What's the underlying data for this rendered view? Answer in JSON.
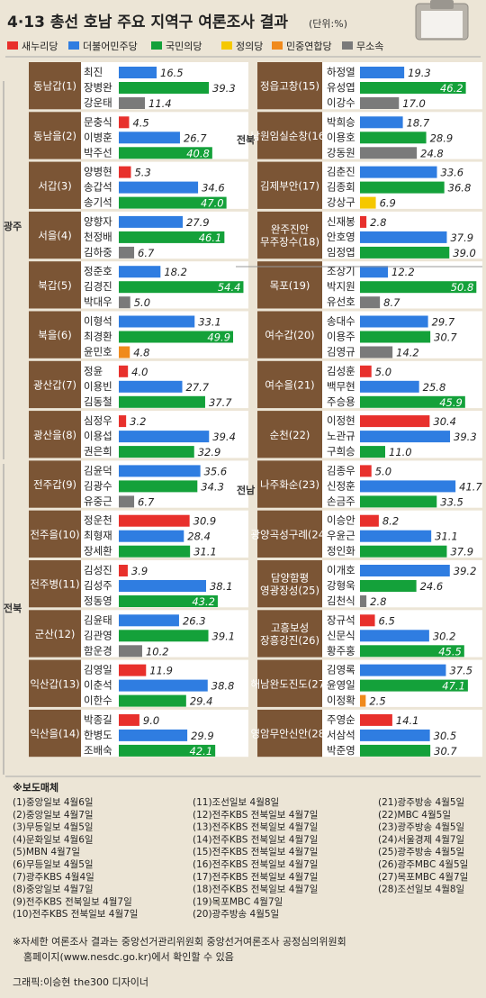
{
  "title": "4·13 총선 호남 주요 지역구 여론조사 결과",
  "unit": "(단위:%)",
  "legend": [
    {
      "name": "새누리당",
      "color": "#e8302c"
    },
    {
      "name": "더불어민주당",
      "color": "#2f7de1"
    },
    {
      "name": "국민의당",
      "color": "#14a13a"
    },
    {
      "name": "정의당",
      "color": "#f5c800"
    },
    {
      "name": "민중연합당",
      "color": "#f08a1c"
    },
    {
      "name": "무소속",
      "color": "#7a7a7a"
    }
  ],
  "regions": {
    "gwangju": "광주",
    "jeonbuk_left": "전북",
    "jeonbuk_right": "전북",
    "jeonnam": "전남"
  },
  "chart_data": {
    "type": "bar",
    "value_unit": "%",
    "left_column": [
      {
        "district": "동남갑(1)",
        "candidates": [
          {
            "name": "최진",
            "party": "더불어민주당",
            "value": 16.5
          },
          {
            "name": "장병완",
            "party": "국민의당",
            "value": 39.3
          },
          {
            "name": "강운태",
            "party": "무소속",
            "value": 11.4
          }
        ]
      },
      {
        "district": "동남을(2)",
        "candidates": [
          {
            "name": "문충식",
            "party": "새누리당",
            "value": 4.5
          },
          {
            "name": "이병훈",
            "party": "더불어민주당",
            "value": 26.7
          },
          {
            "name": "박주선",
            "party": "국민의당",
            "value": 40.8
          }
        ]
      },
      {
        "district": "서갑(3)",
        "candidates": [
          {
            "name": "양병현",
            "party": "새누리당",
            "value": 5.3
          },
          {
            "name": "송갑석",
            "party": "더불어민주당",
            "value": 34.6
          },
          {
            "name": "송기석",
            "party": "국민의당",
            "value": 47.0
          }
        ]
      },
      {
        "district": "서을(4)",
        "candidates": [
          {
            "name": "양향자",
            "party": "더불어민주당",
            "value": 27.9
          },
          {
            "name": "천정배",
            "party": "국민의당",
            "value": 46.1
          },
          {
            "name": "김하중",
            "party": "무소속",
            "value": 6.7
          }
        ]
      },
      {
        "district": "북갑(5)",
        "candidates": [
          {
            "name": "정준호",
            "party": "더불어민주당",
            "value": 18.2
          },
          {
            "name": "김경진",
            "party": "국민의당",
            "value": 54.4
          },
          {
            "name": "박대우",
            "party": "무소속",
            "value": 5.0
          }
        ]
      },
      {
        "district": "북을(6)",
        "candidates": [
          {
            "name": "이형석",
            "party": "더불어민주당",
            "value": 33.1
          },
          {
            "name": "최경환",
            "party": "국민의당",
            "value": 49.9
          },
          {
            "name": "윤민호",
            "party": "민중연합당",
            "value": 4.8
          }
        ]
      },
      {
        "district": "광산갑(7)",
        "candidates": [
          {
            "name": "정윤",
            "party": "새누리당",
            "value": 4.0
          },
          {
            "name": "이용빈",
            "party": "더불어민주당",
            "value": 27.7
          },
          {
            "name": "김동철",
            "party": "국민의당",
            "value": 37.7
          }
        ]
      },
      {
        "district": "광산을(8)",
        "candidates": [
          {
            "name": "심정우",
            "party": "새누리당",
            "value": 3.2
          },
          {
            "name": "이용섭",
            "party": "더불어민주당",
            "value": 39.4
          },
          {
            "name": "권은희",
            "party": "국민의당",
            "value": 32.9
          }
        ]
      },
      {
        "district": "전주갑(9)",
        "candidates": [
          {
            "name": "김윤덕",
            "party": "더불어민주당",
            "value": 35.6
          },
          {
            "name": "김광수",
            "party": "국민의당",
            "value": 34.3
          },
          {
            "name": "유중근",
            "party": "무소속",
            "value": 6.7
          }
        ]
      },
      {
        "district": "전주을(10)",
        "candidates": [
          {
            "name": "정운천",
            "party": "새누리당",
            "value": 30.9
          },
          {
            "name": "최형재",
            "party": "더불어민주당",
            "value": 28.4
          },
          {
            "name": "장세환",
            "party": "국민의당",
            "value": 31.1
          }
        ]
      },
      {
        "district": "전주병(11)",
        "candidates": [
          {
            "name": "김성진",
            "party": "새누리당",
            "value": 3.9
          },
          {
            "name": "김성주",
            "party": "더불어민주당",
            "value": 38.1
          },
          {
            "name": "정동영",
            "party": "국민의당",
            "value": 43.2
          }
        ]
      },
      {
        "district": "군산(12)",
        "candidates": [
          {
            "name": "김윤태",
            "party": "더불어민주당",
            "value": 26.3
          },
          {
            "name": "김관영",
            "party": "국민의당",
            "value": 39.1
          },
          {
            "name": "함운경",
            "party": "무소속",
            "value": 10.2
          }
        ]
      },
      {
        "district": "익산갑(13)",
        "candidates": [
          {
            "name": "김영일",
            "party": "새누리당",
            "value": 11.9
          },
          {
            "name": "이춘석",
            "party": "더불어민주당",
            "value": 38.8
          },
          {
            "name": "이한수",
            "party": "국민의당",
            "value": 29.4
          }
        ]
      },
      {
        "district": "익산을(14)",
        "candidates": [
          {
            "name": "박종길",
            "party": "새누리당",
            "value": 9.0
          },
          {
            "name": "한병도",
            "party": "더불어민주당",
            "value": 29.9
          },
          {
            "name": "조배숙",
            "party": "국민의당",
            "value": 42.1
          }
        ]
      }
    ],
    "right_column": [
      {
        "district": "정읍고창(15)",
        "candidates": [
          {
            "name": "하정열",
            "party": "더불어민주당",
            "value": 19.3
          },
          {
            "name": "유성엽",
            "party": "국민의당",
            "value": 46.2
          },
          {
            "name": "이강수",
            "party": "무소속",
            "value": 17.0
          }
        ]
      },
      {
        "district": "남원임실순창(16)",
        "candidates": [
          {
            "name": "박희승",
            "party": "더불어민주당",
            "value": 18.7
          },
          {
            "name": "이용호",
            "party": "국민의당",
            "value": 28.9
          },
          {
            "name": "강동원",
            "party": "무소속",
            "value": 24.8
          }
        ]
      },
      {
        "district": "김제부안(17)",
        "candidates": [
          {
            "name": "김춘진",
            "party": "더불어민주당",
            "value": 33.6
          },
          {
            "name": "김종회",
            "party": "국민의당",
            "value": 36.8
          },
          {
            "name": "강상구",
            "party": "정의당",
            "value": 6.9
          }
        ]
      },
      {
        "district": "완주진안\n무주장수(18)",
        "candidates": [
          {
            "name": "신재봉",
            "party": "새누리당",
            "value": 2.8
          },
          {
            "name": "안호영",
            "party": "더불어민주당",
            "value": 37.9
          },
          {
            "name": "임정엽",
            "party": "국민의당",
            "value": 39.0
          }
        ]
      },
      {
        "district": "목포(19)",
        "candidates": [
          {
            "name": "조상기",
            "party": "더불어민주당",
            "value": 12.2
          },
          {
            "name": "박지원",
            "party": "국민의당",
            "value": 50.8
          },
          {
            "name": "유선호",
            "party": "무소속",
            "value": 8.7
          }
        ]
      },
      {
        "district": "여수갑(20)",
        "candidates": [
          {
            "name": "송대수",
            "party": "더불어민주당",
            "value": 29.7
          },
          {
            "name": "이용주",
            "party": "국민의당",
            "value": 30.7
          },
          {
            "name": "김영규",
            "party": "무소속",
            "value": 14.2
          }
        ]
      },
      {
        "district": "여수을(21)",
        "candidates": [
          {
            "name": "김성훈",
            "party": "새누리당",
            "value": 5.0
          },
          {
            "name": "백무현",
            "party": "더불어민주당",
            "value": 25.8
          },
          {
            "name": "주승용",
            "party": "국민의당",
            "value": 45.9
          }
        ]
      },
      {
        "district": "순천(22)",
        "candidates": [
          {
            "name": "이정현",
            "party": "새누리당",
            "value": 30.4
          },
          {
            "name": "노관규",
            "party": "더불어민주당",
            "value": 39.3
          },
          {
            "name": "구희승",
            "party": "국민의당",
            "value": 11.0
          }
        ]
      },
      {
        "district": "나주화순(23)",
        "candidates": [
          {
            "name": "김종우",
            "party": "새누리당",
            "value": 5.0
          },
          {
            "name": "신정훈",
            "party": "더불어민주당",
            "value": 41.7
          },
          {
            "name": "손금주",
            "party": "국민의당",
            "value": 33.5
          }
        ]
      },
      {
        "district": "광양곡성구례(24)",
        "candidates": [
          {
            "name": "이승안",
            "party": "새누리당",
            "value": 8.2
          },
          {
            "name": "우윤근",
            "party": "더불어민주당",
            "value": 31.1
          },
          {
            "name": "정인화",
            "party": "국민의당",
            "value": 37.9
          }
        ]
      },
      {
        "district": "담양함평\n영광장성(25)",
        "candidates": [
          {
            "name": "이개호",
            "party": "더불어민주당",
            "value": 39.2
          },
          {
            "name": "강형욱",
            "party": "국민의당",
            "value": 24.6
          },
          {
            "name": "김천식",
            "party": "무소속",
            "value": 2.8
          }
        ]
      },
      {
        "district": "고흥보성\n장흥강진(26)",
        "candidates": [
          {
            "name": "장규석",
            "party": "새누리당",
            "value": 6.5
          },
          {
            "name": "신문식",
            "party": "더불어민주당",
            "value": 30.2
          },
          {
            "name": "황주홍",
            "party": "국민의당",
            "value": 45.5
          }
        ]
      },
      {
        "district": "해남완도진도(27)",
        "candidates": [
          {
            "name": "김영록",
            "party": "더불어민주당",
            "value": 37.5
          },
          {
            "name": "윤영일",
            "party": "국민의당",
            "value": 47.1
          },
          {
            "name": "이정확",
            "party": "민중연합당",
            "value": 2.5
          }
        ]
      },
      {
        "district": "영암무안신안(28)",
        "candidates": [
          {
            "name": "주영순",
            "party": "새누리당",
            "value": 14.1
          },
          {
            "name": "서삼석",
            "party": "더불어민주당",
            "value": 30.5
          },
          {
            "name": "박준영",
            "party": "국민의당",
            "value": 30.7
          }
        ]
      }
    ]
  },
  "sources": {
    "heading": "※보도매체",
    "columns": [
      [
        "(1)중앙일보 4월6일",
        "(2)중앙일보 4월7일",
        "(3)무등일보 4월5일",
        "(4)문화일보 4월6일",
        "(5)MBN 4월7일",
        "(6)무등일보 4월5일",
        "(7)광주KBS 4월4일",
        "(8)중앙일보 4월7일",
        "(9)전주KBS 전북일보 4월7일",
        "(10)전주KBS 전북일보 4월7일"
      ],
      [
        "(11)조선일보 4월8일",
        "(12)전주KBS 전북일보 4월7일",
        "(13)전주KBS 전북일보 4월7일",
        "(14)전주KBS 전북일보 4월7일",
        "(15)전주KBS 전북일보 4월7일",
        "(16)전주KBS 전북일보 4월7일",
        "(17)전주KBS 전북일보 4월7일",
        "(18)전주KBS 전북일보 4월7일",
        "(19)목포MBC 4월7일",
        "(20)광주방송 4월5일"
      ],
      [
        "(21)광주방송 4월5일",
        "(22)MBC 4월5일",
        "(23)광주방송 4월5일",
        "(24)서울경제 4월7일",
        "(25)광주방송 4월5일",
        "(26)광주MBC 4월5일",
        "(27)목포MBC 4월7일",
        "(28)조선일보 4월8일"
      ]
    ],
    "note_line1": "※자세한 여론조사 결과는 중앙선거관리위원회 중앙선거여론조사 공정심의위원회",
    "note_line2": "홈페이지(www.nesdc.go.kr)에서 확인할 수 있음",
    "credit": "그래픽:이승현 the300 디자이너"
  }
}
